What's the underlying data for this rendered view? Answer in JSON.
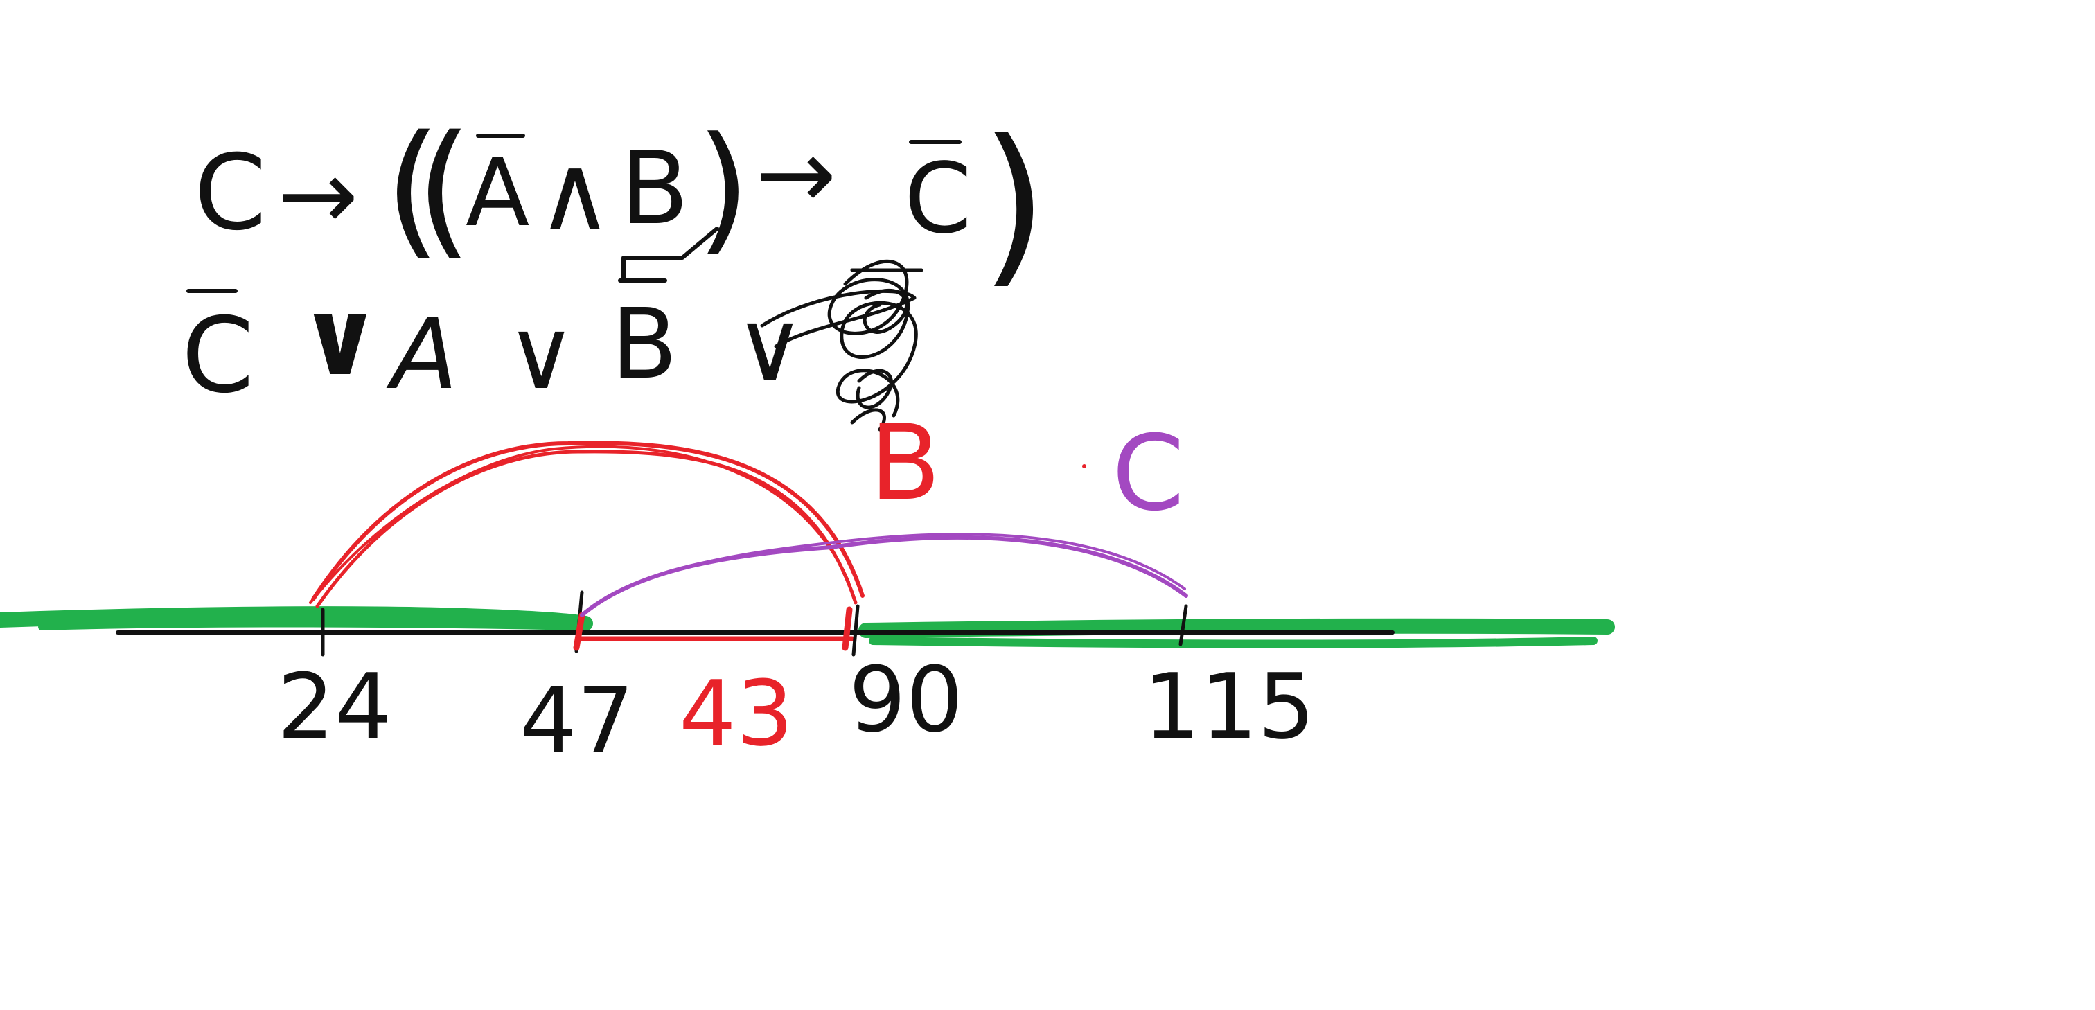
{
  "colors": {
    "black": "#111111",
    "red": "#e8232a",
    "purple": "#a349c1",
    "green": "#22b14c",
    "background": "#ffffff"
  },
  "formula": {
    "line1": {
      "var_c": "C",
      "arrow": "→",
      "open_paren_outer": "(",
      "open_paren_inner": "(",
      "var_a": "A",
      "and": "∧",
      "var_b": "B",
      "close_paren_inner": ")",
      "arrow2": "→",
      "var_c2": "C",
      "close_paren_outer": ")"
    },
    "line2": {
      "var_c": "C",
      "or1": "∨",
      "var_a": "A",
      "or2": "∨",
      "var_b": "B",
      "or3": "∨"
    }
  },
  "labels": {
    "interval_b": "B",
    "interval_c": "C"
  },
  "axis": {
    "ticks": [
      "24",
      "47",
      "90",
      "115"
    ],
    "length_label": "43"
  }
}
